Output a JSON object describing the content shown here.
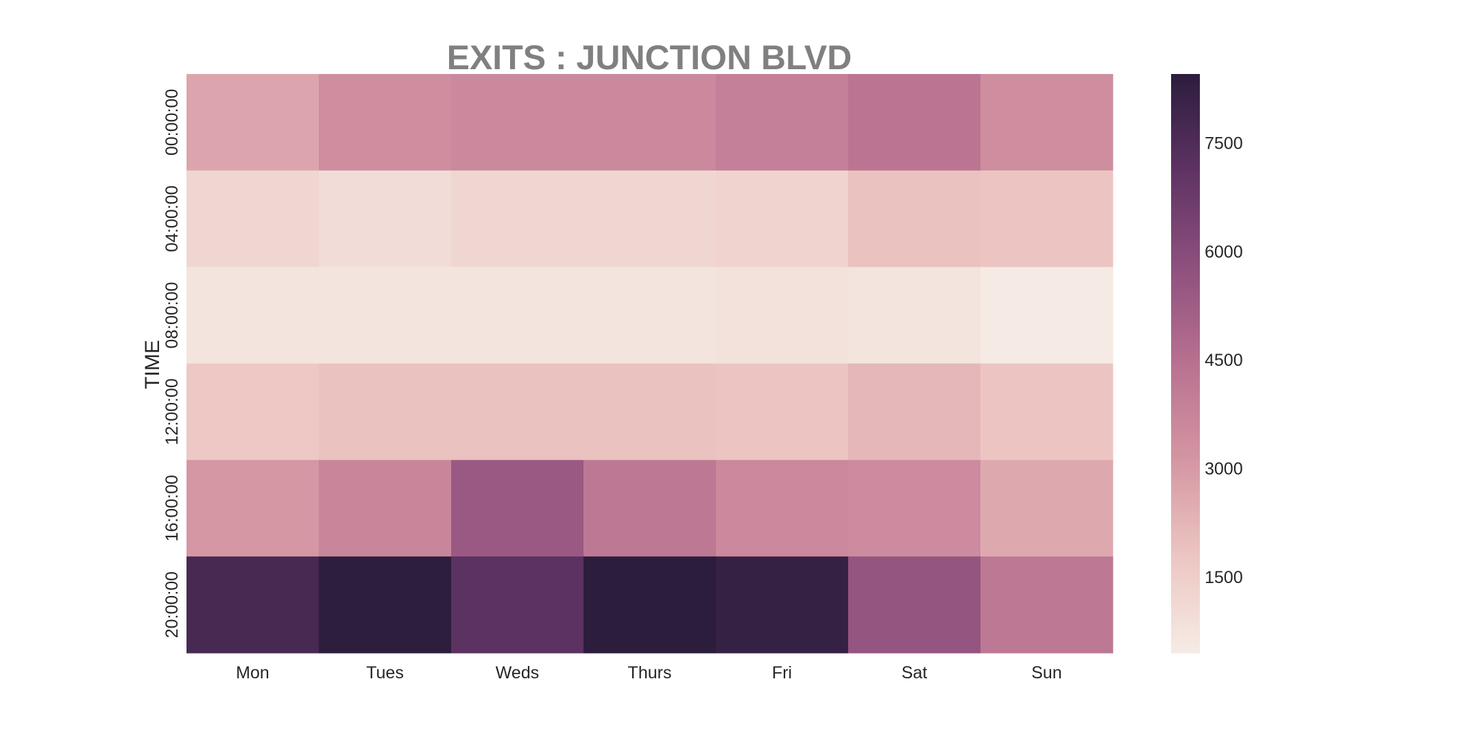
{
  "chart_data": {
    "type": "heatmap",
    "title": "EXITS : JUNCTION BLVD",
    "xlabel": "",
    "ylabel": "TIME",
    "x_categories": [
      "Mon",
      "Tues",
      "Weds",
      "Thurs",
      "Fri",
      "Sat",
      "Sun"
    ],
    "y_categories": [
      "00:00:00",
      "04:00:00",
      "08:00:00",
      "12:00:00",
      "16:00:00",
      "20:00:00"
    ],
    "values": [
      [
        2700,
        3400,
        3600,
        3600,
        3900,
        4300,
        3400
      ],
      [
        1200,
        1000,
        1200,
        1200,
        1300,
        1900,
        1800
      ],
      [
        700,
        700,
        700,
        700,
        800,
        700,
        500
      ],
      [
        1700,
        1900,
        1900,
        1900,
        1800,
        2200,
        1800
      ],
      [
        3100,
        3700,
        5400,
        4200,
        3600,
        3500,
        2600
      ],
      [
        7700,
        8400,
        7200,
        8500,
        8200,
        5600,
        4200
      ]
    ],
    "colorbar": {
      "range": [
        450,
        8450
      ],
      "ticks": [
        1500,
        3000,
        4500,
        6000,
        7500
      ],
      "tick_labels": [
        "1500",
        "3000",
        "4500",
        "6000",
        "7500"
      ]
    },
    "colormap": [
      "#f6ebe5",
      "#ecc6c2",
      "#d496a3",
      "#b87190",
      "#8e507e",
      "#5e3363",
      "#2c1d3d"
    ],
    "grid": false
  }
}
